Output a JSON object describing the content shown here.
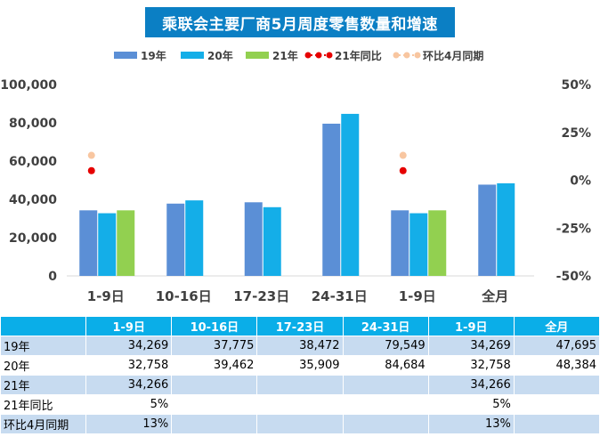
{
  "title": "乘联会主要厂商5月周度零售数量和增速",
  "colors": {
    "title_bg": "#0b7fc4",
    "s19": "#5b8fd6",
    "s20": "#14aee8",
    "s21": "#92d050",
    "yoy": "#e60000",
    "mom": "#f8c6a0",
    "header_bg": "#0aaee8",
    "row_shade": "#c7dbf0"
  },
  "chart_data": {
    "type": "bar",
    "categories": [
      "1-9日",
      "10-16日",
      "17-23日",
      "24-31日",
      "1-9日",
      "全月"
    ],
    "series": [
      {
        "name": "19年",
        "values": [
          34269,
          37775,
          38472,
          79549,
          34269,
          47695
        ]
      },
      {
        "name": "20年",
        "values": [
          32758,
          39462,
          35909,
          84684,
          32758,
          48384
        ]
      },
      {
        "name": "21年",
        "values": [
          34266,
          null,
          null,
          null,
          34266,
          null
        ]
      }
    ],
    "line_series": [
      {
        "name": "21年同比",
        "values": [
          0.05,
          null,
          null,
          null,
          0.05,
          null
        ]
      },
      {
        "name": "环比4月同期",
        "values": [
          0.13,
          null,
          null,
          null,
          0.13,
          null
        ]
      }
    ],
    "ylim": [
      0,
      100000
    ],
    "y_ticks": [
      "0",
      "20,000",
      "40,000",
      "60,000",
      "80,000",
      "100,000"
    ],
    "y2lim": [
      -0.5,
      0.5
    ],
    "y2_ticks": [
      "-50%",
      "-25%",
      "0%",
      "25%",
      "50%"
    ],
    "legend": [
      "19年",
      "20年",
      "21年",
      "21年同比",
      "环比4月同期"
    ],
    "legend_position": "top"
  },
  "table": {
    "header": [
      "",
      "1-9日",
      "10-16日",
      "17-23日",
      "24-31日",
      "1-9日",
      "全月"
    ],
    "rows": [
      {
        "label": "19年",
        "cells": [
          "34,269",
          "37,775",
          "38,472",
          "79,549",
          "34,269",
          "47,695"
        ]
      },
      {
        "label": "20年",
        "cells": [
          "32,758",
          "39,462",
          "35,909",
          "84,684",
          "32,758",
          "48,384"
        ]
      },
      {
        "label": "21年",
        "cells": [
          "34,266",
          "",
          "",
          "",
          "34,266",
          ""
        ]
      },
      {
        "label": "21年同比",
        "cells": [
          "5%",
          "",
          "",
          "",
          "5%",
          ""
        ]
      },
      {
        "label": "环比4月同期",
        "cells": [
          "13%",
          "",
          "",
          "",
          "13%",
          ""
        ]
      }
    ]
  }
}
